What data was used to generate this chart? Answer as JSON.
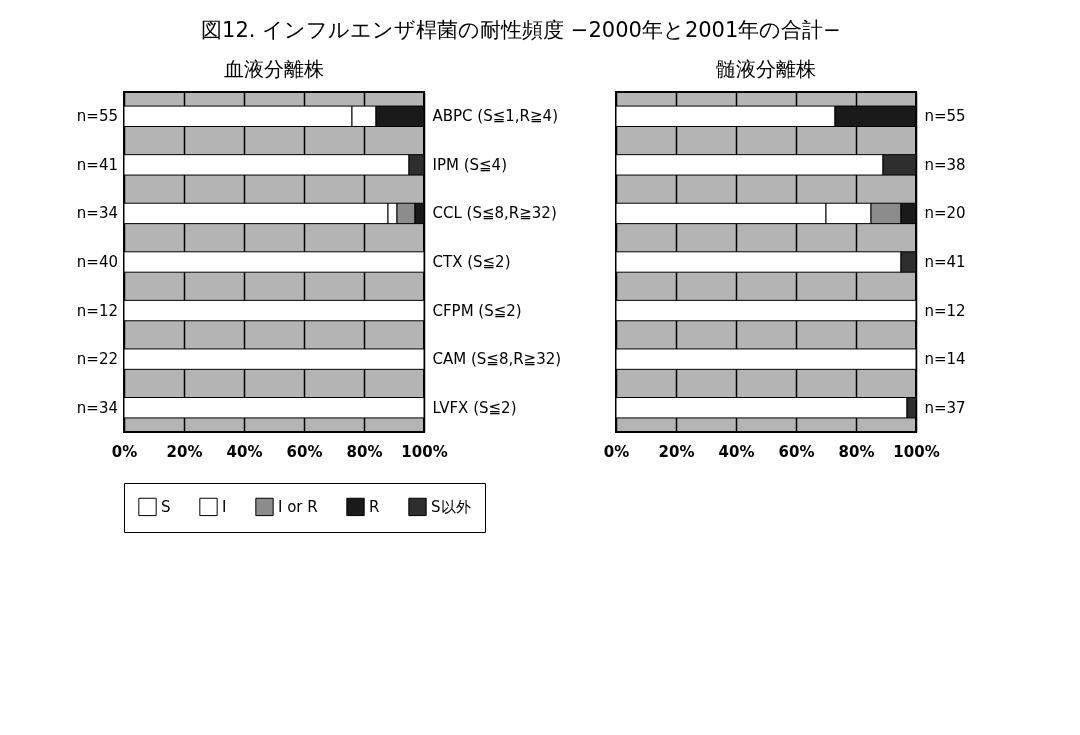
{
  "chart_data": [
    {
      "type": "bar",
      "orientation": "horizontal",
      "stacked": true,
      "title": "血液分離株",
      "legend": "bottom",
      "grid": "x",
      "annotations": [
        "図12. インフルエンザ桿菌の耐性頻度 −2000年と2001年の合計−",
        "n=55",
        "n=41",
        "n=34",
        "n=40",
        "n=12",
        "n=22",
        "n=34"
      ],
      "categories": [
        "ABPC (S≦1,R≧4)",
        "IPM (S≦4)",
        "CCL (S≦8,R≧32)",
        "CTX (S≦2)",
        "CFPM (S≦2)",
        "CAM (S≦8,R≧32)",
        "LVFX (S≦2)"
      ],
      "xlim": [
        0,
        100
      ],
      "xticks": [
        {
          "value": 0,
          "label": "0%"
        },
        {
          "value": 20,
          "label": "20%"
        },
        {
          "value": 40,
          "label": "40%"
        },
        {
          "value": 60,
          "label": "60%"
        },
        {
          "value": 80,
          "label": "80%"
        },
        {
          "value": 100,
          "label": "100%"
        }
      ],
      "series": [
        {
          "name": "S",
          "color": "#ffffff",
          "values": [
            76,
            95,
            88,
            100,
            100,
            100,
            100
          ]
        },
        {
          "name": "I",
          "color": "#ffffff",
          "values": [
            8,
            null,
            3,
            null,
            null,
            null,
            null
          ]
        },
        {
          "name": "I or R",
          "color": "#8c8c8c",
          "values": [
            null,
            null,
            6,
            null,
            null,
            null,
            null
          ]
        },
        {
          "name": "R",
          "color": "#1a1a1a",
          "values": [
            16,
            null,
            3,
            null,
            null,
            null,
            null
          ]
        },
        {
          "name": "S以外",
          "color": "#2e2e2e",
          "values": [
            null,
            5,
            null,
            null,
            null,
            null,
            null
          ]
        }
      ]
    },
    {
      "type": "bar",
      "orientation": "horizontal",
      "stacked": true,
      "title": "髄液分離株",
      "grid": "x",
      "categories": [
        "n=55",
        "n=38",
        "n=20",
        "n=41",
        "n=12",
        "n=14",
        "n=37"
      ],
      "xlim": [
        0,
        100
      ],
      "xticks": [
        {
          "value": 0,
          "label": "0%"
        },
        {
          "value": 20,
          "label": "20%"
        },
        {
          "value": 40,
          "label": "40%"
        },
        {
          "value": 60,
          "label": "60%"
        },
        {
          "value": 80,
          "label": "80%"
        },
        {
          "value": 100,
          "label": "100%"
        }
      ],
      "series": [
        {
          "color": "#ffffff",
          "values": [
            73,
            89,
            70,
            95,
            100,
            100,
            97
          ]
        },
        {
          "color": "#ffffff",
          "values": [
            null,
            null,
            15,
            null,
            null,
            null,
            null
          ]
        },
        {
          "color": "#8c8c8c",
          "values": [
            null,
            null,
            10,
            null,
            null,
            null,
            null
          ]
        },
        {
          "color": "#1a1a1a",
          "values": [
            27,
            null,
            5,
            null,
            null,
            null,
            null
          ]
        },
        {
          "color": "#2e2e2e",
          "values": [
            null,
            11,
            null,
            5,
            null,
            null,
            3
          ]
        }
      ]
    }
  ]
}
